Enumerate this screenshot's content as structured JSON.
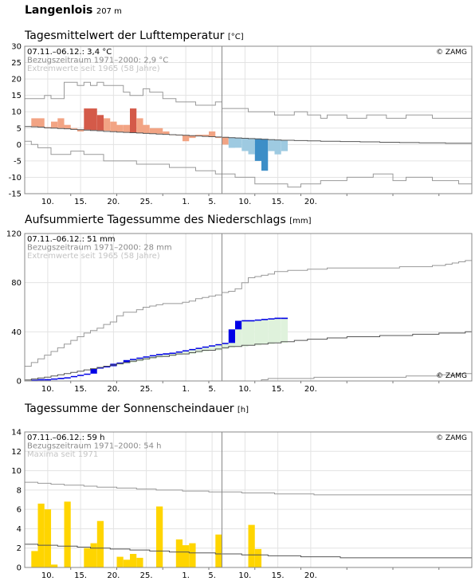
{
  "station": {
    "name": "Langenlois",
    "elevation": "207 m"
  },
  "x_ticks": [
    "10.",
    "15.",
    "20.",
    "25.",
    "1.",
    "5.",
    "10.",
    "15.",
    "20."
  ],
  "copyright": "© ZAMG",
  "chart_data": [
    {
      "type": "bar",
      "title": "Tagesmittelwert der Lufttemperatur",
      "unit": "[°C]",
      "ylim": [
        -15,
        30
      ],
      "yticks": [
        -15,
        -10,
        -5,
        0,
        5,
        10,
        15,
        20,
        25,
        30
      ],
      "legend": [
        "07.11.–06.12.: 3,4 °C",
        "Bezugszeitraum 1971–2000: 2,9 °C",
        "Extremwerte seit 1965 (58 Jahre)"
      ],
      "start_day": "07.11.",
      "end_day": "06.12.",
      "values": [
        8,
        8,
        5,
        7,
        8,
        6,
        5,
        4,
        11,
        11,
        9,
        8,
        7,
        6,
        6,
        11,
        8,
        6,
        5,
        5,
        4,
        3,
        3,
        1,
        2,
        3,
        3,
        4,
        2,
        0,
        -1,
        -1,
        -2,
        -3,
        -5,
        -8,
        -2,
        -3,
        -2
      ],
      "normal": [
        5.5,
        5.4,
        5.3,
        5.1,
        5,
        4.9,
        4.8,
        4.6,
        4.5,
        4.4,
        4.3,
        4.2,
        4,
        3.9,
        3.8,
        3.7,
        3.6,
        3.5,
        3.4,
        3.3,
        3.2,
        3.1,
        3,
        2.9,
        2.8,
        2.7,
        2.6,
        2.5,
        2.4,
        2.3,
        2.2,
        2.1,
        2,
        1.9,
        1.8,
        1.7,
        1.6,
        1.5,
        1.4,
        1.3,
        1.3,
        1.2,
        1.2,
        1.1,
        1.1,
        1,
        1,
        1,
        0.9,
        0.9,
        0.9,
        0.8,
        0.8,
        0.8,
        0.7,
        0.7,
        0.7,
        0.6,
        0.6,
        0.6,
        0.5,
        0.5,
        0.5,
        0.5,
        0.4,
        0.4,
        0.4,
        0.4
      ],
      "extreme_max": [
        14,
        14,
        14,
        15,
        14,
        14,
        19,
        19,
        18,
        19,
        18,
        19,
        18,
        18,
        18,
        16,
        15,
        15,
        17,
        16,
        16,
        14,
        14,
        13,
        13,
        13,
        12,
        12,
        12,
        13,
        11,
        11,
        11,
        11,
        10,
        10,
        10,
        10,
        9,
        9,
        9,
        10,
        10,
        9,
        9,
        8,
        9,
        9,
        9,
        8,
        8,
        8,
        9,
        9,
        9,
        8,
        8,
        8,
        9,
        9,
        9,
        9,
        8,
        8,
        8,
        8,
        8,
        8
      ],
      "extreme_min": [
        1,
        0,
        -1,
        -1,
        -3,
        -3,
        -3,
        -2,
        -2,
        -3,
        -3,
        -3,
        -5,
        -5,
        -5,
        -5,
        -5,
        -6,
        -6,
        -6,
        -6,
        -6,
        -7,
        -7,
        -7,
        -7,
        -8,
        -8,
        -8,
        -9,
        -9,
        -9,
        -10,
        -10,
        -10,
        -12,
        -12,
        -12,
        -12,
        -12,
        -13,
        -13,
        -12,
        -12,
        -12,
        -11,
        -11,
        -11,
        -11,
        -10,
        -10,
        -10,
        -10,
        -9,
        -9,
        -9,
        -11,
        -11,
        -10,
        -10,
        -10,
        -10,
        -11,
        -11,
        -11,
        -11,
        -12,
        -12
      ]
    },
    {
      "type": "area",
      "title": "Aufsummierte Tagessumme des Niederschlags",
      "unit": "[mm]",
      "ylim": [
        0,
        120
      ],
      "yticks": [
        0,
        40,
        80,
        120
      ],
      "legend": [
        "07.11.–06.12.: 51 mm",
        "Bezugszeitraum 1971–2000: 28 mm",
        "Extremwerte seit 1965 (58 Jahre)"
      ],
      "values": [
        1,
        1,
        1,
        2,
        2,
        3,
        4,
        5,
        6,
        10,
        11,
        12,
        14,
        15,
        17,
        18,
        19,
        20,
        21,
        22,
        22,
        23,
        24,
        25,
        26,
        27,
        28,
        29,
        30,
        31,
        42,
        49,
        49,
        49,
        50,
        50,
        51,
        51,
        51
      ],
      "normal": [
        0.8,
        1.6,
        2.4,
        3.1,
        4,
        5,
        6,
        7,
        8,
        9,
        10,
        11,
        12,
        13,
        14,
        15,
        16,
        17,
        18,
        19,
        20,
        20,
        21,
        22,
        22,
        23,
        24,
        25,
        25,
        26,
        27,
        28,
        28,
        29,
        29,
        30,
        30,
        31,
        31,
        32,
        32,
        33,
        33,
        34,
        34,
        34,
        35,
        35,
        35,
        36,
        36,
        36,
        36,
        36,
        37,
        37,
        37,
        37,
        37,
        38,
        38,
        38,
        38,
        39,
        39,
        39,
        39,
        40
      ],
      "extreme_max": [
        12,
        15,
        18,
        21,
        24,
        27,
        30,
        33,
        36,
        39,
        41,
        43,
        46,
        48,
        53,
        56,
        56,
        58,
        60,
        61,
        62,
        63,
        63,
        63,
        64,
        65,
        67,
        68,
        69,
        70,
        72,
        73,
        75,
        80,
        84,
        85,
        86,
        87,
        89,
        89,
        90,
        90,
        90,
        91,
        91,
        91,
        92,
        92,
        92,
        92,
        92,
        92,
        92,
        92,
        92,
        92,
        92,
        93,
        93,
        93,
        93,
        93,
        94,
        94,
        95,
        96,
        97,
        98
      ],
      "extreme_min": [
        0,
        0,
        0,
        0,
        0,
        0,
        0,
        0,
        0,
        0,
        0,
        0,
        0,
        0,
        0,
        0,
        0,
        0,
        0,
        0,
        0,
        0,
        0,
        0,
        0,
        0,
        0,
        0,
        0,
        0,
        0,
        0,
        0,
        0,
        0,
        0,
        1,
        2,
        2,
        2,
        2,
        2,
        2,
        2,
        3,
        3,
        3,
        3,
        3,
        3,
        3,
        3,
        3,
        3,
        3,
        3,
        3,
        3,
        4,
        4,
        4,
        4,
        4,
        5,
        5,
        5,
        6,
        6
      ]
    },
    {
      "type": "bar",
      "title": "Tagessumme der Sonnenscheindauer",
      "unit": "[h]",
      "ylim": [
        0,
        14
      ],
      "yticks": [
        0,
        2,
        4,
        6,
        8,
        10,
        12,
        14
      ],
      "legend": [
        "07.11.–06.12.: 59 h",
        "Bezugszeitraum 1971–2000: 54 h",
        "Maxima seit 1971"
      ],
      "values": [
        1.7,
        6.6,
        6.0,
        0.3,
        0,
        6.8,
        0,
        0,
        2.0,
        2.5,
        4.8,
        0,
        0,
        1.1,
        0.8,
        1.4,
        1.0,
        0,
        0,
        6.3,
        0,
        0,
        2.9,
        2.3,
        2.5,
        0,
        0,
        0,
        3.4,
        0,
        0,
        0,
        0,
        4.4,
        1.9,
        0,
        0,
        0,
        0
      ],
      "normal": [
        2.4,
        2.4,
        2.3,
        2.3,
        2.3,
        2.2,
        2.2,
        2.2,
        2.1,
        2.1,
        2.0,
        2.0,
        2.0,
        1.9,
        1.9,
        1.9,
        1.8,
        1.8,
        1.8,
        1.7,
        1.7,
        1.7,
        1.6,
        1.6,
        1.6,
        1.5,
        1.5,
        1.5,
        1.5,
        1.4,
        1.4,
        1.4,
        1.4,
        1.3,
        1.3,
        1.3,
        1.3,
        1.2,
        1.2,
        1.2,
        1.2,
        1.2,
        1.1,
        1.1,
        1.1,
        1.1,
        1.1,
        1.1,
        1.0,
        1.0,
        1.0,
        1.0,
        1.0,
        1.0,
        1.0,
        1.0,
        1.0,
        1.0,
        1.0,
        1.0,
        1.0,
        1.0,
        1.0,
        1.0,
        1.0,
        1.0,
        1.0,
        1.0
      ],
      "extreme_max": [
        8.8,
        8.8,
        8.7,
        8.7,
        8.6,
        8.6,
        8.5,
        8.5,
        8.5,
        8.4,
        8.4,
        8.3,
        8.3,
        8.3,
        8.2,
        8.2,
        8.2,
        8.1,
        8.1,
        8.1,
        8.0,
        8.0,
        8.0,
        8.0,
        7.9,
        7.9,
        7.9,
        7.9,
        7.8,
        7.8,
        7.8,
        7.8,
        7.8,
        7.7,
        7.7,
        7.7,
        7.7,
        7.7,
        7.6,
        7.6,
        7.6,
        7.6,
        7.6,
        7.6,
        7.5,
        7.5,
        7.5,
        7.5,
        7.5,
        7.5,
        7.5,
        7.5,
        7.5,
        7.5,
        7.5,
        7.5,
        7.5,
        7.5,
        7.5,
        7.5,
        7.5,
        7.5,
        7.5,
        7.5,
        7.5,
        7.5,
        7.5,
        7.5
      ]
    }
  ]
}
